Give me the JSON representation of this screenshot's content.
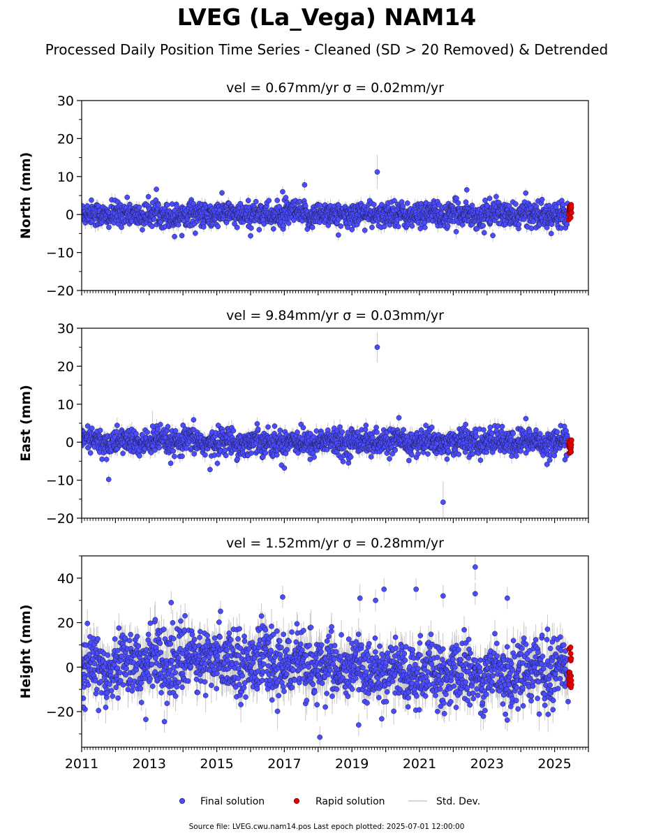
{
  "figure": {
    "title": "LVEG (La_Vega) NAM14",
    "subtitle": "Processed Daily Position Time Series - Cleaned (SD > 20 Removed) & Detrended",
    "source_note": "Source file: LVEG.cwu.nam14.pos  Last epoch plotted: 2025-07-01 12:00:00"
  },
  "colors": {
    "final": "#4b4bff",
    "rapid": "#e00000",
    "stddev": "#c8c8c8",
    "marker_edge": "#1a1a40"
  },
  "legend": {
    "final": "Final solution",
    "rapid": "Rapid solution",
    "stddev": "Std. Dev."
  },
  "chart_data": [
    {
      "type": "scatter",
      "name": "north",
      "title": "vel = 0.67mm/yr   σ = 0.02mm/yr",
      "ylabel": "North (mm)",
      "xlim": [
        2011.0,
        2026.0
      ],
      "ylim": [
        -20,
        30
      ],
      "yticks": [
        -20,
        -10,
        0,
        10,
        20,
        30
      ],
      "ytick_labels": [
        "−20",
        "−10",
        "0",
        "10",
        "20",
        "30"
      ],
      "xticks": [
        2011,
        2013,
        2015,
        2017,
        2019,
        2021,
        2023,
        2025
      ],
      "xtick_labels": [],
      "typical_scatter_mm": 1.6,
      "typical_sigma_mm": 1.3,
      "data_start": 2011.0,
      "final_end": 2025.4,
      "rapid_range": [
        2025.42,
        2025.5
      ],
      "rapid_y_range": [
        -1.5,
        3.0
      ],
      "outliers": [
        {
          "x": 2019.75,
          "y": 11.2,
          "sd": 4.5
        },
        {
          "x": 2017.6,
          "y": 7.8,
          "sd": 1.5
        },
        {
          "x": 2016.95,
          "y": 6.0,
          "sd": 1.5
        },
        {
          "x": 2022.4,
          "y": 6.5,
          "sd": 1.2
        },
        {
          "x": 2013.75,
          "y": -5.8,
          "sd": 1.2
        },
        {
          "x": 2016.0,
          "y": -5.6,
          "sd": 1.2
        },
        {
          "x": 2018.6,
          "y": -5.4,
          "sd": 1.5
        },
        {
          "x": 2024.9,
          "y": -5.0,
          "sd": 1.5
        }
      ]
    },
    {
      "type": "scatter",
      "name": "east",
      "title": "vel = 9.84mm/yr   σ = 0.03mm/yr",
      "ylabel": "East (mm)",
      "xlim": [
        2011.0,
        2026.0
      ],
      "ylim": [
        -20,
        30
      ],
      "yticks": [
        -20,
        -10,
        0,
        10,
        20,
        30
      ],
      "ytick_labels": [
        "−20",
        "−10",
        "0",
        "10",
        "20",
        "30"
      ],
      "xticks": [
        2011,
        2013,
        2015,
        2017,
        2019,
        2021,
        2023,
        2025
      ],
      "xtick_labels": [],
      "typical_scatter_mm": 1.7,
      "typical_sigma_mm": 1.5,
      "data_start": 2011.0,
      "final_end": 2025.4,
      "rapid_range": [
        2025.42,
        2025.5
      ],
      "rapid_y_range": [
        -3.0,
        1.0
      ],
      "outliers": [
        {
          "x": 2019.75,
          "y": 25.0,
          "sd": 4.0
        },
        {
          "x": 2021.7,
          "y": -15.8,
          "sd": 5.5
        },
        {
          "x": 2011.8,
          "y": -9.8,
          "sd": 1.5
        },
        {
          "x": 2024.15,
          "y": 6.2,
          "sd": 1.5
        },
        {
          "x": 2013.1,
          "y": 4.2,
          "sd": 4.0
        },
        {
          "x": 2014.8,
          "y": -7.2,
          "sd": 1.5
        },
        {
          "x": 2017.0,
          "y": -6.8,
          "sd": 1.5
        }
      ]
    },
    {
      "type": "scatter",
      "name": "height",
      "title": "vel = 1.52mm/yr   σ = 0.28mm/yr",
      "ylabel": "Height (mm)",
      "xlim": [
        2011.0,
        2026.0
      ],
      "ylim": [
        -36,
        50
      ],
      "yticks": [
        -20,
        0,
        20,
        40
      ],
      "ytick_labels": [
        "−20",
        "0",
        "20",
        "40"
      ],
      "xticks": [
        2011,
        2013,
        2015,
        2017,
        2019,
        2021,
        2023,
        2025
      ],
      "xtick_labels": [
        "2011",
        "2013",
        "2015",
        "2017",
        "2019",
        "2021",
        "2023",
        "2025"
      ],
      "typical_scatter_mm": 7.0,
      "typical_sigma_mm": 6.0,
      "data_start": 2011.0,
      "final_end": 2025.4,
      "rapid_range": [
        2025.42,
        2025.5
      ],
      "rapid_y_range": [
        -10.5,
        10.0
      ],
      "outliers": [
        {
          "x": 2022.65,
          "y": 45.0,
          "sd": 6.0
        },
        {
          "x": 2022.65,
          "y": 33.0,
          "sd": 5.0
        },
        {
          "x": 2020.9,
          "y": 35.0,
          "sd": 5.0
        },
        {
          "x": 2019.95,
          "y": 35.0,
          "sd": 5.0
        },
        {
          "x": 2021.7,
          "y": 32.0,
          "sd": 5.0
        },
        {
          "x": 2016.95,
          "y": 31.5,
          "sd": 5.0
        },
        {
          "x": 2023.6,
          "y": 31.0,
          "sd": 5.0
        },
        {
          "x": 2013.65,
          "y": 29.0,
          "sd": 5.0
        },
        {
          "x": 2019.7,
          "y": 30.0,
          "sd": 5.0
        },
        {
          "x": 2018.05,
          "y": -31.5,
          "sd": 5.0
        },
        {
          "x": 2019.2,
          "y": -26.0,
          "sd": 5.0
        },
        {
          "x": 2013.45,
          "y": -24.5,
          "sd": 5.0
        },
        {
          "x": 2012.9,
          "y": -23.5,
          "sd": 5.0
        },
        {
          "x": 2023.6,
          "y": -23.8,
          "sd": 5.0
        },
        {
          "x": 2011.5,
          "y": -19.5,
          "sd": 4.0
        },
        {
          "x": 2011.05,
          "y": -18.0,
          "sd": 4.0
        },
        {
          "x": 2025.4,
          "y": -15.5,
          "sd": 4.0
        }
      ]
    }
  ]
}
